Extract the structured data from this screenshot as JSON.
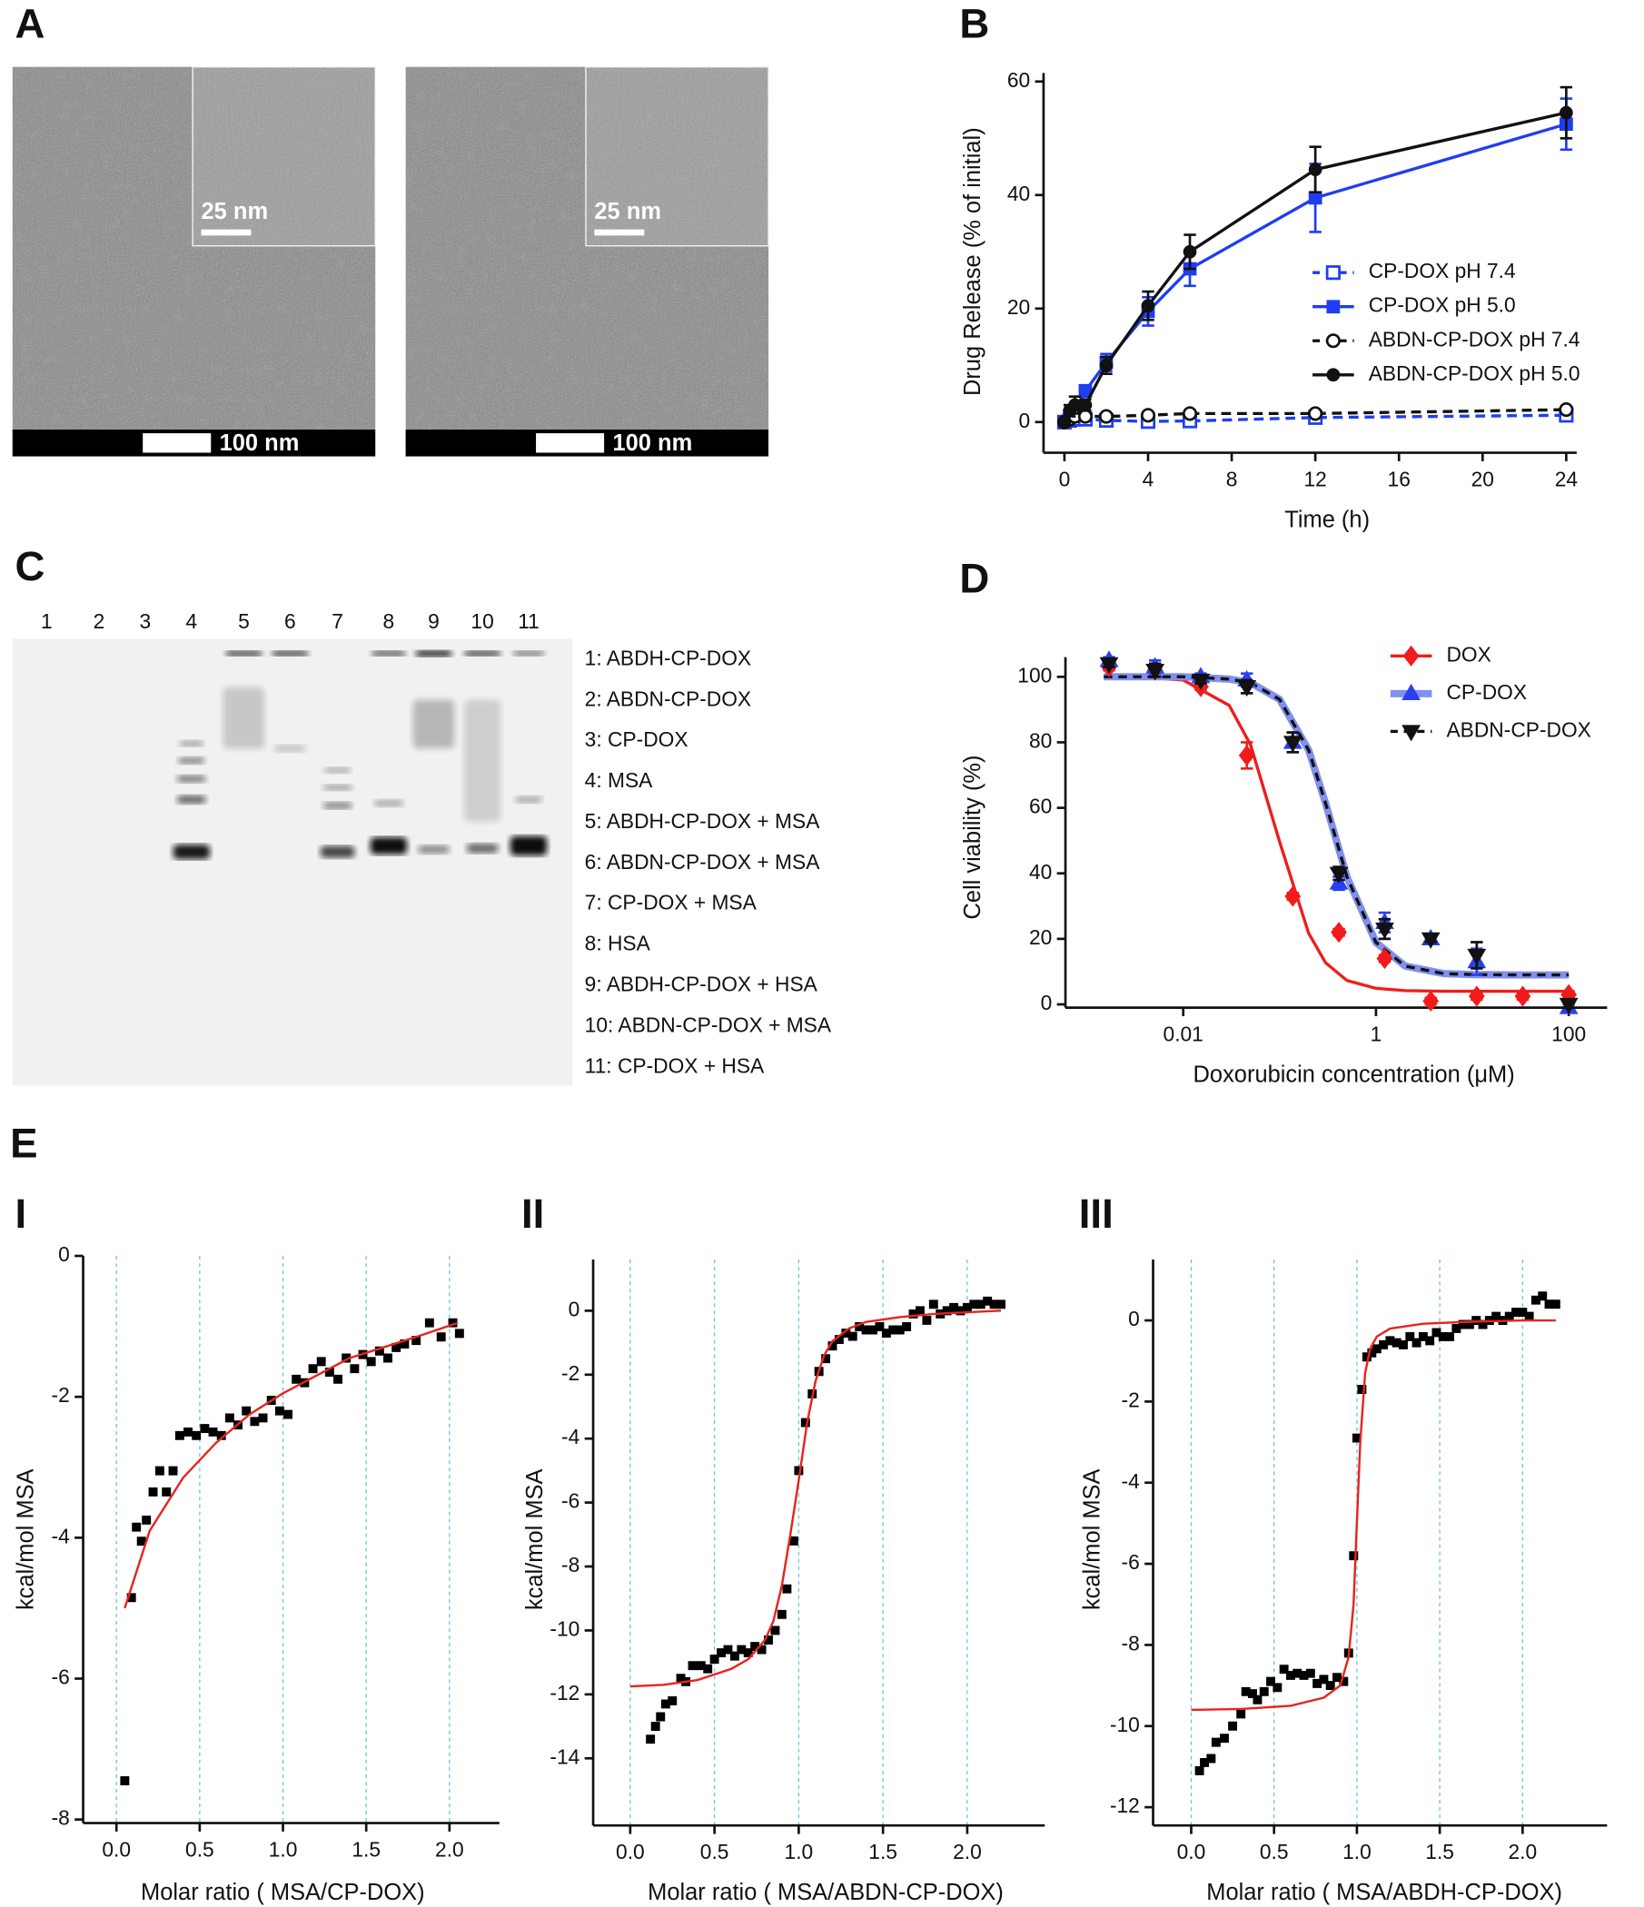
{
  "panel_labels": [
    "A",
    "B",
    "C",
    "D",
    "E",
    "I",
    "II",
    "III"
  ],
  "tem_images": [
    {
      "inset_scale": "25 nm",
      "scale": "100 nm"
    },
    {
      "inset_scale": "25 nm",
      "scale": "100 nm"
    }
  ],
  "gel": {
    "lanes": [
      "1",
      "2",
      "3",
      "4",
      "5",
      "6",
      "7",
      "8",
      "9",
      "10",
      "11"
    ],
    "legend": [
      "1: ABDH-CP-DOX",
      "2: ABDN-CP-DOX",
      "3: CP-DOX",
      "4: MSA",
      "5: ABDH-CP-DOX + MSA",
      "6: ABDN-CP-DOX + MSA",
      "7: CP-DOX + MSA",
      "8: HSA",
      "9: ABDH-CP-DOX + HSA",
      "10: ABDN-CP-DOX + MSA",
      "11: CP-DOX + HSA"
    ]
  },
  "chart_data": [
    {
      "type": "line",
      "xlabel": "Time (h)",
      "ylabel": "Drug Release (% of initial)",
      "x": [
        0,
        0.25,
        0.5,
        1,
        2,
        4,
        6,
        12,
        24
      ],
      "xlim": [
        -1,
        24.5
      ],
      "ylim": [
        -5.4,
        61.5
      ],
      "xticks": [
        0,
        4,
        8,
        12,
        16,
        20,
        24
      ],
      "yticks": [
        0,
        20,
        40,
        60
      ],
      "series": [
        {
          "name": "CP-DOX pH 7.4",
          "color": "#1f3df2",
          "dash": true,
          "marker": "square",
          "open": true,
          "values": [
            0,
            0.3,
            0.5,
            0.5,
            0.3,
            0.1,
            0.2,
            0.8,
            1.2
          ],
          "errors": [
            0.3,
            0.3,
            0.3,
            0.3,
            0.3,
            0.3,
            0.3,
            0.3,
            0.3
          ]
        },
        {
          "name": "CP-DOX pH 5.0",
          "color": "#1f3df2",
          "dash": false,
          "marker": "square",
          "open": false,
          "values": [
            0,
            1,
            2,
            5.5,
            10.5,
            19.5,
            27,
            39.5,
            52.5
          ],
          "errors": [
            0.5,
            0.5,
            0.5,
            1,
            1.5,
            2.5,
            3,
            6,
            4.5
          ]
        },
        {
          "name": "ABDN-CP-DOX pH 7.4",
          "color": "#111111",
          "dash": true,
          "marker": "circle",
          "open": true,
          "values": [
            0,
            0.5,
            1,
            1,
            1,
            1.2,
            1.5,
            1.5,
            2.2
          ],
          "errors": [
            0.3,
            0.3,
            0.3,
            0.3,
            0.3,
            0.3,
            0.3,
            0.3,
            0.3
          ]
        },
        {
          "name": "ABDN-CP-DOX pH 5.0",
          "color": "#111111",
          "dash": false,
          "marker": "circle",
          "open": false,
          "values": [
            0,
            2,
            3,
            3,
            10,
            20.5,
            30,
            44.5,
            54.5
          ],
          "errors": [
            0.5,
            1,
            1.5,
            1,
            1.5,
            2.5,
            3,
            4,
            4.5
          ]
        }
      ]
    },
    {
      "type": "scatter",
      "xscale": "log",
      "xlabel": "Doxorubicin concentration (μM)",
      "ylabel": "Cell viability (%)",
      "x": [
        0.0017,
        0.0051,
        0.0152,
        0.0457,
        0.137,
        0.412,
        1.23,
        3.7,
        11.1,
        33.3,
        100
      ],
      "xlim": [
        0.0006,
        250
      ],
      "ylim": [
        -1,
        106
      ],
      "xticks": [
        0.01,
        1,
        100
      ],
      "yticks": [
        0,
        20,
        40,
        60,
        80,
        100
      ],
      "fit_x": [
        0.0015,
        0.003,
        0.01,
        0.03,
        0.05,
        0.1,
        0.2,
        0.3,
        0.5,
        1,
        2,
        5,
        10,
        30,
        100
      ],
      "series": [
        {
          "name": "DOX",
          "color": "#f01c1c",
          "marker": "diamond",
          "fit_color": "#f01c1c",
          "fit_dash": false,
          "values": [
            103,
            102,
            97,
            76,
            33,
            22,
            14,
            1,
            2.5,
            2.5,
            3
          ],
          "errors": [
            1,
            2,
            1,
            4,
            1,
            1,
            1,
            1,
            1,
            1,
            1
          ],
          "fit": [
            100,
            100,
            99,
            91.3,
            79.2,
            49.7,
            21.7,
            12.7,
            7.3,
            4.9,
            4.2,
            4,
            4,
            4,
            4
          ]
        },
        {
          "name": "CP-DOX",
          "color": "#2a3ff0",
          "marker": "triangle-up",
          "fit_color": "#8090ee",
          "fit_dash": false,
          "values": [
            105,
            103,
            100,
            99,
            80,
            37,
            25,
            20,
            13,
            null,
            -1
          ],
          "errors": [
            1,
            2,
            1,
            2,
            3,
            2,
            3,
            1,
            4,
            null,
            1
          ],
          "fit": [
            100,
            100,
            100,
            99.3,
            98.2,
            93.1,
            77.6,
            61.4,
            38.9,
            18.9,
            11.7,
            9.4,
            9.1,
            9,
            9
          ]
        },
        {
          "name": "ABDN-CP-DOX",
          "color": "#111111",
          "marker": "triangle-down",
          "fit_color": "#111111",
          "fit_dash": true,
          "values": [
            104,
            102,
            99,
            97,
            80,
            40,
            23,
            20,
            15,
            null,
            0
          ],
          "errors": [
            1,
            2,
            1,
            2,
            3,
            2,
            3,
            1,
            4,
            null,
            1
          ],
          "fit": [
            100,
            100,
            100,
            99.3,
            98.2,
            93.1,
            77.6,
            61.4,
            38.9,
            18.9,
            11.7,
            9.4,
            9.1,
            9,
            9
          ]
        }
      ]
    },
    {
      "type": "scatter",
      "grid": "x",
      "xlabel": "Molar ratio ( MSA/CP-DOX)",
      "ylabel": "kcal/mol MSA",
      "color": "#000000",
      "marker": "square",
      "x": [
        0.05,
        0.09,
        0.12,
        0.15,
        0.18,
        0.22,
        0.26,
        0.3,
        0.34,
        0.38,
        0.43,
        0.48,
        0.53,
        0.58,
        0.63,
        0.68,
        0.73,
        0.78,
        0.83,
        0.88,
        0.93,
        0.98,
        1.03,
        1.08,
        1.13,
        1.18,
        1.23,
        1.28,
        1.33,
        1.38,
        1.43,
        1.48,
        1.53,
        1.58,
        1.63,
        1.68,
        1.73,
        1.8,
        1.88,
        1.95,
        2.02,
        2.06
      ],
      "values": [
        -7.45,
        -4.85,
        -3.85,
        -4.05,
        -3.75,
        -3.35,
        -3.05,
        -3.35,
        -3.05,
        -2.55,
        -2.5,
        -2.55,
        -2.45,
        -2.5,
        -2.55,
        -2.3,
        -2.4,
        -2.2,
        -2.35,
        -2.3,
        -2.05,
        -2.2,
        -2.25,
        -1.75,
        -1.8,
        -1.6,
        -1.5,
        -1.65,
        -1.75,
        -1.45,
        -1.6,
        -1.4,
        -1.5,
        -1.35,
        -1.45,
        -1.3,
        -1.25,
        -1.2,
        -0.95,
        -1.15,
        -0.95,
        -1.1
      ],
      "fit": {
        "color": "#e8231f",
        "x": [
          0.05,
          0.2,
          0.4,
          0.6,
          0.8,
          1.0,
          1.2,
          1.4,
          1.6,
          1.8,
          2.05
        ],
        "values": [
          -5.0,
          -3.9,
          -3.15,
          -2.65,
          -2.25,
          -1.95,
          -1.7,
          -1.45,
          -1.3,
          -1.15,
          -0.95
        ]
      },
      "xlim": [
        -0.2,
        2.3
      ],
      "ylim": [
        -8.05,
        0
      ],
      "xticks": [
        {
          "value": 0,
          "label": "0.0"
        },
        0.5,
        {
          "value": 1,
          "label": "1.0"
        },
        1.5,
        {
          "value": 2,
          "label": "2.0"
        }
      ],
      "yticks": [
        0,
        -2,
        -4,
        -6,
        -8
      ]
    },
    {
      "type": "scatter",
      "grid": "x",
      "xlabel": "Molar ratio ( MSA/ABDN-CP-DOX)",
      "ylabel": "kcal/mol MSA",
      "color": "#000000",
      "marker": "square",
      "x": [
        0.12,
        0.15,
        0.18,
        0.21,
        0.25,
        0.3,
        0.33,
        0.37,
        0.42,
        0.46,
        0.5,
        0.54,
        0.58,
        0.62,
        0.66,
        0.7,
        0.74,
        0.78,
        0.82,
        0.86,
        0.9,
        0.93,
        0.97,
        1.0,
        1.04,
        1.08,
        1.12,
        1.16,
        1.2,
        1.24,
        1.28,
        1.32,
        1.36,
        1.4,
        1.44,
        1.48,
        1.52,
        1.56,
        1.6,
        1.64,
        1.68,
        1.72,
        1.76,
        1.8,
        1.84,
        1.88,
        1.92,
        1.96,
        2.0,
        2.04,
        2.08,
        2.12,
        2.16,
        2.2
      ],
      "values": [
        -13.4,
        -13,
        -12.7,
        -12.3,
        -12.2,
        -11.5,
        -11.6,
        -11.1,
        -11.1,
        -11.2,
        -10.9,
        -10.7,
        -10.6,
        -10.8,
        -10.6,
        -10.7,
        -10.5,
        -10.6,
        -10.3,
        -10,
        -9.5,
        -8.7,
        -7.2,
        -5,
        -3.5,
        -2.6,
        -1.9,
        -1.5,
        -1.1,
        -0.9,
        -0.7,
        -0.8,
        -0.5,
        -0.6,
        -0.6,
        -0.5,
        -0.7,
        -0.6,
        -0.6,
        -0.5,
        -0.1,
        0,
        -0.3,
        0.2,
        -0.1,
        0,
        0.1,
        0,
        0.1,
        0.2,
        0.2,
        0.3,
        0.2,
        0.2
      ],
      "fit": {
        "color": "#e8231f",
        "x": [
          0,
          0.2,
          0.4,
          0.6,
          0.7,
          0.8,
          0.85,
          0.9,
          0.95,
          1.0,
          1.05,
          1.1,
          1.15,
          1.2,
          1.3,
          1.4,
          1.6,
          1.8,
          2.0,
          2.2
        ],
        "values": [
          -11.75,
          -11.7,
          -11.55,
          -11.2,
          -10.9,
          -10.3,
          -9.7,
          -8.6,
          -7,
          -5.3,
          -3.5,
          -2.2,
          -1.4,
          -0.95,
          -0.55,
          -0.35,
          -0.2,
          -0.1,
          -0.05,
          0
        ]
      },
      "xlim": [
        -0.22,
        2.46
      ],
      "ylim": [
        -16.1,
        1.6
      ],
      "xticks": [
        {
          "value": 0,
          "label": "0.0"
        },
        0.5,
        {
          "value": 1,
          "label": "1.0"
        },
        1.5,
        {
          "value": 2,
          "label": "2.0"
        }
      ],
      "yticks": [
        0,
        -2,
        -4,
        -6,
        -8,
        -10,
        -12,
        -14
      ]
    },
    {
      "type": "scatter",
      "grid": "x",
      "xlabel": "Molar ratio ( MSA/ABDH-CP-DOX)",
      "ylabel": "kcal/mol MSA",
      "color": "#000000",
      "marker": "square",
      "x": [
        0.05,
        0.08,
        0.12,
        0.15,
        0.2,
        0.25,
        0.3,
        0.33,
        0.37,
        0.4,
        0.44,
        0.48,
        0.52,
        0.56,
        0.6,
        0.64,
        0.68,
        0.72,
        0.76,
        0.8,
        0.84,
        0.88,
        0.92,
        0.95,
        0.98,
        1.0,
        1.03,
        1.06,
        1.09,
        1.12,
        1.16,
        1.2,
        1.24,
        1.28,
        1.32,
        1.36,
        1.4,
        1.44,
        1.48,
        1.52,
        1.56,
        1.6,
        1.64,
        1.68,
        1.72,
        1.76,
        1.8,
        1.84,
        1.88,
        1.92,
        1.96,
        2.0,
        2.04,
        2.08,
        2.12,
        2.16,
        2.2
      ],
      "values": [
        -11.1,
        -10.9,
        -10.8,
        -10.4,
        -10.3,
        -10,
        -9.7,
        -9.15,
        -9.2,
        -9.35,
        -9.15,
        -8.9,
        -9.05,
        -8.6,
        -8.75,
        -8.7,
        -8.75,
        -8.7,
        -8.95,
        -8.85,
        -9,
        -8.8,
        -8.9,
        -8.2,
        -5.8,
        -2.9,
        -1.7,
        -0.9,
        -0.8,
        -0.7,
        -0.6,
        -0.5,
        -0.55,
        -0.6,
        -0.4,
        -0.55,
        -0.4,
        -0.5,
        -0.3,
        -0.4,
        -0.4,
        -0.2,
        -0.1,
        -0.1,
        0,
        -0.1,
        0,
        0.1,
        0,
        0.1,
        0.2,
        0.2,
        0.1,
        0.5,
        0.6,
        0.4,
        0.4
      ],
      "fit": {
        "color": "#e8231f",
        "x": [
          0,
          0.3,
          0.6,
          0.8,
          0.9,
          0.95,
          0.98,
          1.0,
          1.02,
          1.05,
          1.08,
          1.12,
          1.2,
          1.4,
          1.7,
          2.0,
          2.2
        ],
        "values": [
          -9.6,
          -9.58,
          -9.5,
          -9.3,
          -9,
          -8.3,
          -7,
          -5,
          -3,
          -1.3,
          -0.7,
          -0.4,
          -0.2,
          -0.08,
          -0.03,
          0,
          0
        ]
      },
      "xlim": [
        -0.23,
        2.51
      ],
      "ylim": [
        -12.45,
        1.5
      ],
      "xticks": [
        {
          "value": 0,
          "label": "0.0"
        },
        0.5,
        {
          "value": 1,
          "label": "1.0"
        },
        1.5,
        {
          "value": 2,
          "label": "2.0"
        }
      ],
      "yticks": [
        0,
        -2,
        -4,
        -6,
        -8,
        -10,
        -12
      ]
    }
  ]
}
